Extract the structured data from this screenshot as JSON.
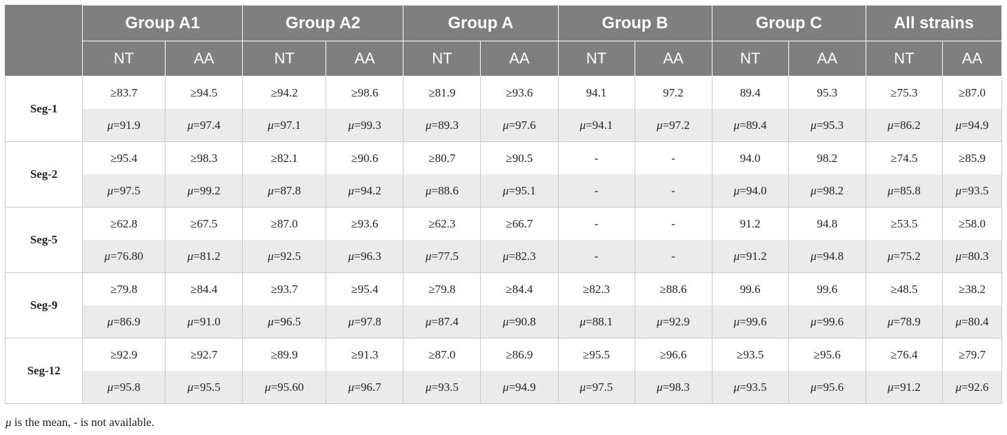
{
  "header": {
    "groups": [
      "Group A1",
      "Group A2",
      "Group A",
      "Group B",
      "Group C",
      "All strains"
    ],
    "sub": [
      "NT",
      "AA",
      "NT",
      "AA",
      "NT",
      "AA",
      "NT",
      "AA",
      "NT",
      "AA",
      "NT",
      "AA"
    ]
  },
  "segments": [
    {
      "label": "Seg-1",
      "min": [
        "≥83.7",
        "≥94.5",
        "≥94.2",
        "≥98.6",
        "≥81.9",
        "≥93.6",
        "94.1",
        "97.2",
        "89.4",
        "95.3",
        "≥75.3",
        "≥87.0"
      ],
      "mean": [
        "91.9",
        "97.4",
        "97.1",
        "99.3",
        "89.3",
        "97.6",
        "94.1",
        "97.2",
        "89.4",
        "95.3",
        "86.2",
        "94.9"
      ]
    },
    {
      "label": "Seg-2",
      "min": [
        "≥95.4",
        "≥98.3",
        "≥82.1",
        "≥90.6",
        "≥80.7",
        "≥90.5",
        "-",
        "-",
        "94.0",
        "98.2",
        "≥74.5",
        "≥85.9"
      ],
      "mean": [
        "97.5",
        "99.2",
        "87.8",
        "94.2",
        "88.6",
        "95.1",
        "-",
        "-",
        "94.0",
        "98.2",
        "85.8",
        "93.5"
      ]
    },
    {
      "label": "Seg-5",
      "min": [
        "≥62.8",
        "≥67.5",
        "≥87.0",
        "≥93.6",
        "≥62.3",
        "≥66.7",
        "-",
        "-",
        "91.2",
        "94.8",
        "≥53.5",
        "≥58.0"
      ],
      "mean": [
        "76.80",
        "81.2",
        "92.5",
        "96.3",
        "77.5",
        "82.3",
        "-",
        "-",
        "91.2",
        "94.8",
        "75.2",
        "80.3"
      ]
    },
    {
      "label": "Seg-9",
      "min": [
        "≥79.8",
        "≥84.4",
        "≥93.7",
        "≥95.4",
        "≥79.8",
        "≥84.4",
        "≥82.3",
        "≥88.6",
        "99.6",
        "99.6",
        "≥48.5",
        "≥38.2"
      ],
      "mean": [
        "86.9",
        "91.0",
        "96.5",
        "97.8",
        "87.4",
        "90.8",
        "88.1",
        "92.9",
        "99.6",
        "99.6",
        "78.9",
        "80.4"
      ]
    },
    {
      "label": "Seg-12",
      "min": [
        "≥92.9",
        "≥92.7",
        "≥89.9",
        "≥91.3",
        "≥87.0",
        "≥86.9",
        "≥95.5",
        "≥96.6",
        "≥93.5",
        "≥95.6",
        "≥76.4",
        "≥79.7"
      ],
      "mean": [
        "95.8",
        "95.5",
        "95.60",
        "96.7",
        "93.5",
        "94.9",
        "97.5",
        "98.3",
        "93.5",
        "95.6",
        "91.2",
        "92.6"
      ]
    }
  ],
  "mu_symbol": "μ",
  "mu_prefix": "=",
  "footnote_mu": "μ",
  "footnote_text": " is the mean, - is not available.",
  "colors": {
    "header_bg": "#7f7f7f",
    "header_text": "#ffffff",
    "mean_row_bg": "#ebebeb",
    "grid": "#c8c8c8"
  }
}
